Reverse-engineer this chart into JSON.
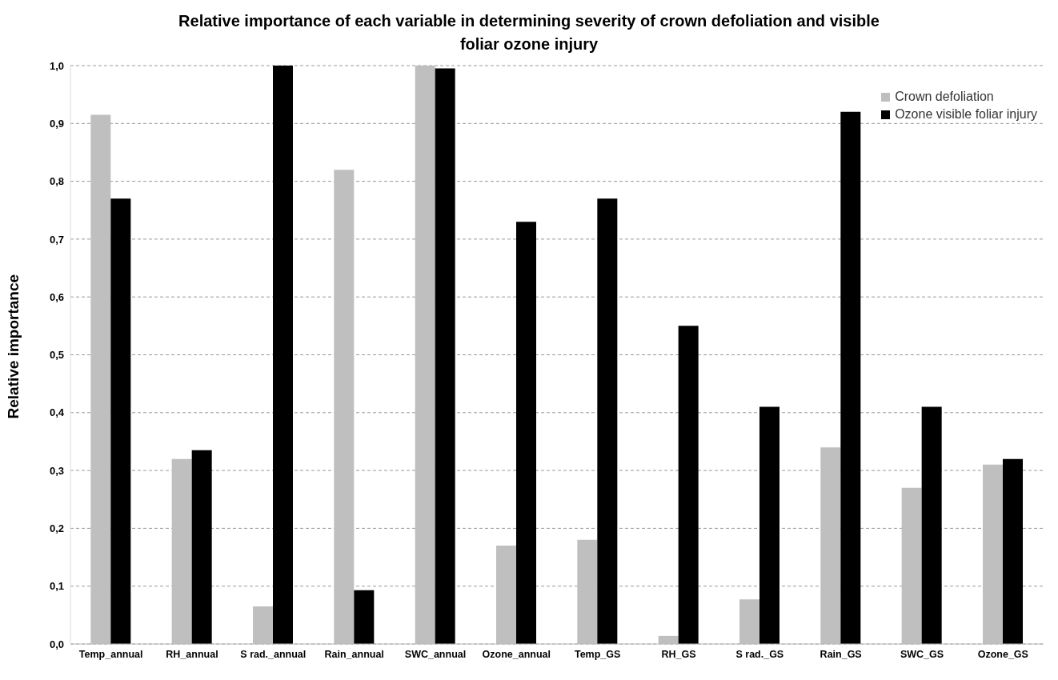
{
  "chart_data": {
    "type": "bar",
    "title": "Relative importance of each variable in determining severity of crown defoliation and visible foliar ozone injury",
    "ylabel": "Relative importance",
    "categories": [
      "Temp_annual",
      "RH_annual",
      "S rad._annual",
      "Rain_annual",
      "SWC_annual",
      "Ozone_annual",
      "Temp_GS",
      "RH_GS",
      "S rad._GS",
      "Rain_GS",
      "SWC_GS",
      "Ozone_GS"
    ],
    "series": [
      {
        "name": "Crown defoliation",
        "color": "#bfbfbf",
        "values": [
          0.915,
          0.32,
          0.065,
          0.82,
          1.0,
          0.17,
          0.18,
          0.014,
          0.077,
          0.34,
          0.27,
          0.31
        ]
      },
      {
        "name": "Ozone visible foliar injury",
        "color": "#000000",
        "values": [
          0.77,
          0.335,
          1.0,
          0.093,
          0.995,
          0.73,
          0.77,
          0.55,
          0.41,
          0.92,
          0.41,
          0.32
        ]
      }
    ],
    "ylim": [
      0,
      1
    ],
    "yticks": [
      {
        "value": 0,
        "label": "0,0"
      },
      {
        "value": 0.1,
        "label": "0,1"
      },
      {
        "value": 0.2,
        "label": "0,2"
      },
      {
        "value": 0.3,
        "label": "0,3"
      },
      {
        "value": 0.4,
        "label": "0,4"
      },
      {
        "value": 0.5,
        "label": "0,5"
      },
      {
        "value": 0.6,
        "label": "0,6"
      },
      {
        "value": 0.7,
        "label": "0,7"
      },
      {
        "value": 0.8,
        "label": "0,8"
      },
      {
        "value": 0.9,
        "label": "0,9"
      },
      {
        "value": 1,
        "label": "1,0"
      }
    ],
    "grid": "y",
    "legend": "top right"
  }
}
